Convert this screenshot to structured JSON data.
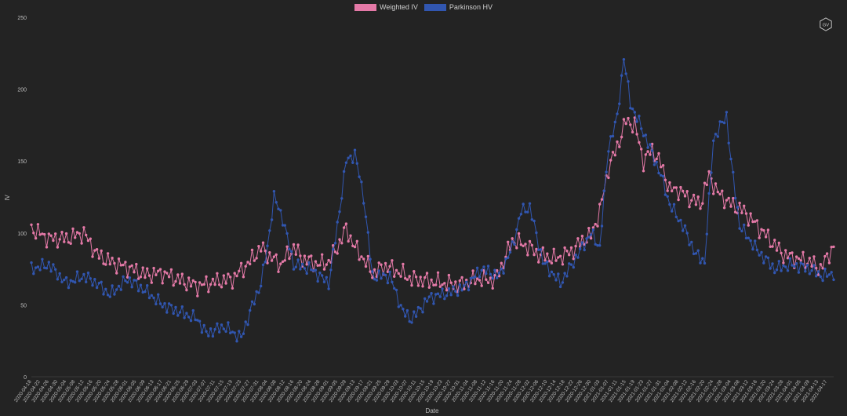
{
  "legend": [
    {
      "label": "Weighted IV",
      "color": "#e479a7"
    },
    {
      "label": "Parkinson HV",
      "color": "#3156b0"
    }
  ],
  "logo_text": "GV",
  "chart_data": {
    "type": "line",
    "title": "",
    "xlabel": "Date",
    "ylabel": "IV",
    "ylim": [
      0,
      250
    ],
    "yticks": [
      0,
      50,
      100,
      150,
      200,
      250
    ],
    "grid": false,
    "legend_position": "top-center",
    "date_range": [
      "2020-04-18",
      "2021-04-20"
    ],
    "xticks": [
      "2020-04-18",
      "2020-04-22",
      "2020-04-26",
      "2020-04-30",
      "2020-05-04",
      "2020-05-08",
      "2020-05-12",
      "2020-05-16",
      "2020-05-20",
      "2020-05-24",
      "2020-05-28",
      "2020-06-01",
      "2020-06-05",
      "2020-06-09",
      "2020-06-13",
      "2020-06-17",
      "2020-06-21",
      "2020-06-25",
      "2020-06-29",
      "2020-07-03",
      "2020-07-07",
      "2020-07-11",
      "2020-07-15",
      "2020-07-19",
      "2020-07-23",
      "2020-07-27",
      "2020-07-31",
      "2020-08-04",
      "2020-08-08",
      "2020-08-12",
      "2020-08-16",
      "2020-08-20",
      "2020-08-24",
      "2020-08-28",
      "2020-09-01",
      "2020-09-05",
      "2020-09-09",
      "2020-09-13",
      "2020-09-17",
      "2020-09-21",
      "2020-09-25",
      "2020-09-29",
      "2020-10-03",
      "2020-10-07",
      "2020-10-11",
      "2020-10-15",
      "2020-10-19",
      "2020-10-23",
      "2020-10-27",
      "2020-10-31",
      "2020-11-04",
      "2020-11-08",
      "2020-11-12",
      "2020-11-16",
      "2020-11-20",
      "2020-11-24",
      "2020-11-28",
      "2020-12-02",
      "2020-12-06",
      "2020-12-10",
      "2020-12-14",
      "2020-12-18",
      "2020-12-22",
      "2020-12-26",
      "2020-12-30",
      "2021-01-03",
      "2021-01-07",
      "2021-01-11",
      "2021-01-15",
      "2021-01-19",
      "2021-01-23",
      "2021-01-27",
      "2021-01-31",
      "2021-02-04",
      "2021-02-08",
      "2021-02-12",
      "2021-02-16",
      "2021-02-20",
      "2021-02-24",
      "2021-02-28",
      "2021-03-04",
      "2021-03-08",
      "2021-03-12",
      "2021-03-16",
      "2021-03-20",
      "2021-03-24",
      "2021-03-28",
      "2021-04-01",
      "2021-04-05",
      "2021-04-09",
      "2021-04-13",
      "2021-04-17"
    ],
    "series": [
      {
        "name": "Weighted IV",
        "color": "#e479a7",
        "points": [
          [
            "2020-04-18",
            103
          ],
          [
            "2020-04-26",
            96
          ],
          [
            "2020-05-04",
            96
          ],
          [
            "2020-05-12",
            100
          ],
          [
            "2020-05-18",
            85
          ],
          [
            "2020-05-24",
            80
          ],
          [
            "2020-06-01",
            76
          ],
          [
            "2020-06-09",
            71
          ],
          [
            "2020-06-17",
            72
          ],
          [
            "2020-06-25",
            67
          ],
          [
            "2020-07-03",
            63
          ],
          [
            "2020-07-11",
            66
          ],
          [
            "2020-07-19",
            68
          ],
          [
            "2020-07-27",
            80
          ],
          [
            "2020-08-01",
            90
          ],
          [
            "2020-08-04",
            85
          ],
          [
            "2020-08-10",
            78
          ],
          [
            "2020-08-16",
            90
          ],
          [
            "2020-08-20",
            82
          ],
          [
            "2020-08-28",
            78
          ],
          [
            "2020-09-01",
            80
          ],
          [
            "2020-09-05",
            90
          ],
          [
            "2020-09-09",
            103
          ],
          [
            "2020-09-13",
            90
          ],
          [
            "2020-09-17",
            82
          ],
          [
            "2020-09-21",
            72
          ],
          [
            "2020-09-27",
            77
          ],
          [
            "2020-10-03",
            73
          ],
          [
            "2020-10-09",
            68
          ],
          [
            "2020-10-15",
            67
          ],
          [
            "2020-10-23",
            65
          ],
          [
            "2020-10-31",
            64
          ],
          [
            "2020-11-08",
            68
          ],
          [
            "2020-11-16",
            67
          ],
          [
            "2020-11-20",
            80
          ],
          [
            "2020-11-24",
            95
          ],
          [
            "2020-12-02",
            90
          ],
          [
            "2020-12-06",
            85
          ],
          [
            "2020-12-14",
            82
          ],
          [
            "2020-12-22",
            88
          ],
          [
            "2020-12-26",
            95
          ],
          [
            "2020-12-30",
            98
          ],
          [
            "2021-01-03",
            115
          ],
          [
            "2021-01-07",
            145
          ],
          [
            "2021-01-11",
            160
          ],
          [
            "2021-01-15",
            178
          ],
          [
            "2021-01-19",
            175
          ],
          [
            "2021-01-23",
            150
          ],
          [
            "2021-01-27",
            158
          ],
          [
            "2021-01-31",
            148
          ],
          [
            "2021-02-04",
            130
          ],
          [
            "2021-02-08",
            130
          ],
          [
            "2021-02-12",
            125
          ],
          [
            "2021-02-18",
            120
          ],
          [
            "2021-02-22",
            140
          ],
          [
            "2021-02-26",
            128
          ],
          [
            "2021-03-04",
            120
          ],
          [
            "2021-03-10",
            115
          ],
          [
            "2021-03-16",
            105
          ],
          [
            "2021-03-22",
            95
          ],
          [
            "2021-03-28",
            85
          ],
          [
            "2021-04-03",
            82
          ],
          [
            "2021-04-09",
            80
          ],
          [
            "2021-04-14",
            75
          ],
          [
            "2021-04-20",
            91
          ]
        ]
      },
      {
        "name": "Parkinson HV",
        "color": "#3156b0",
        "points": [
          [
            "2020-04-18",
            75
          ],
          [
            "2020-04-26",
            78
          ],
          [
            "2020-05-04",
            65
          ],
          [
            "2020-05-12",
            70
          ],
          [
            "2020-05-18",
            65
          ],
          [
            "2020-05-24",
            57
          ],
          [
            "2020-06-01",
            68
          ],
          [
            "2020-06-09",
            60
          ],
          [
            "2020-06-17",
            50
          ],
          [
            "2020-06-25",
            45
          ],
          [
            "2020-07-03",
            40
          ],
          [
            "2020-07-07",
            30
          ],
          [
            "2020-07-15",
            35
          ],
          [
            "2020-07-23",
            27
          ],
          [
            "2020-07-27",
            45
          ],
          [
            "2020-08-01",
            65
          ],
          [
            "2020-08-04",
            90
          ],
          [
            "2020-08-07",
            125
          ],
          [
            "2020-08-11",
            110
          ],
          [
            "2020-08-16",
            78
          ],
          [
            "2020-08-24",
            75
          ],
          [
            "2020-09-01",
            65
          ],
          [
            "2020-09-05",
            105
          ],
          [
            "2020-09-09",
            150
          ],
          [
            "2020-09-13",
            155
          ],
          [
            "2020-09-17",
            125
          ],
          [
            "2020-09-21",
            70
          ],
          [
            "2020-09-29",
            70
          ],
          [
            "2020-10-05",
            45
          ],
          [
            "2020-10-09",
            40
          ],
          [
            "2020-10-17",
            55
          ],
          [
            "2020-10-25",
            58
          ],
          [
            "2020-11-02",
            62
          ],
          [
            "2020-11-10",
            75
          ],
          [
            "2020-11-18",
            70
          ],
          [
            "2020-11-24",
            90
          ],
          [
            "2020-11-28",
            115
          ],
          [
            "2020-12-02",
            118
          ],
          [
            "2020-12-08",
            80
          ],
          [
            "2020-12-16",
            65
          ],
          [
            "2020-12-22",
            80
          ],
          [
            "2020-12-30",
            100
          ],
          [
            "2021-01-03",
            90
          ],
          [
            "2021-01-07",
            160
          ],
          [
            "2021-01-11",
            180
          ],
          [
            "2021-01-14",
            222
          ],
          [
            "2021-01-17",
            190
          ],
          [
            "2021-01-23",
            170
          ],
          [
            "2021-01-31",
            140
          ],
          [
            "2021-02-04",
            120
          ],
          [
            "2021-02-10",
            105
          ],
          [
            "2021-02-16",
            85
          ],
          [
            "2021-02-20",
            80
          ],
          [
            "2021-02-24",
            165
          ],
          [
            "2021-03-02",
            182
          ],
          [
            "2021-03-04",
            150
          ],
          [
            "2021-03-08",
            105
          ],
          [
            "2021-03-16",
            88
          ],
          [
            "2021-03-24",
            75
          ],
          [
            "2021-04-01",
            78
          ],
          [
            "2021-04-09",
            75
          ],
          [
            "2021-04-15",
            70
          ],
          [
            "2021-04-20",
            72
          ]
        ]
      }
    ]
  }
}
